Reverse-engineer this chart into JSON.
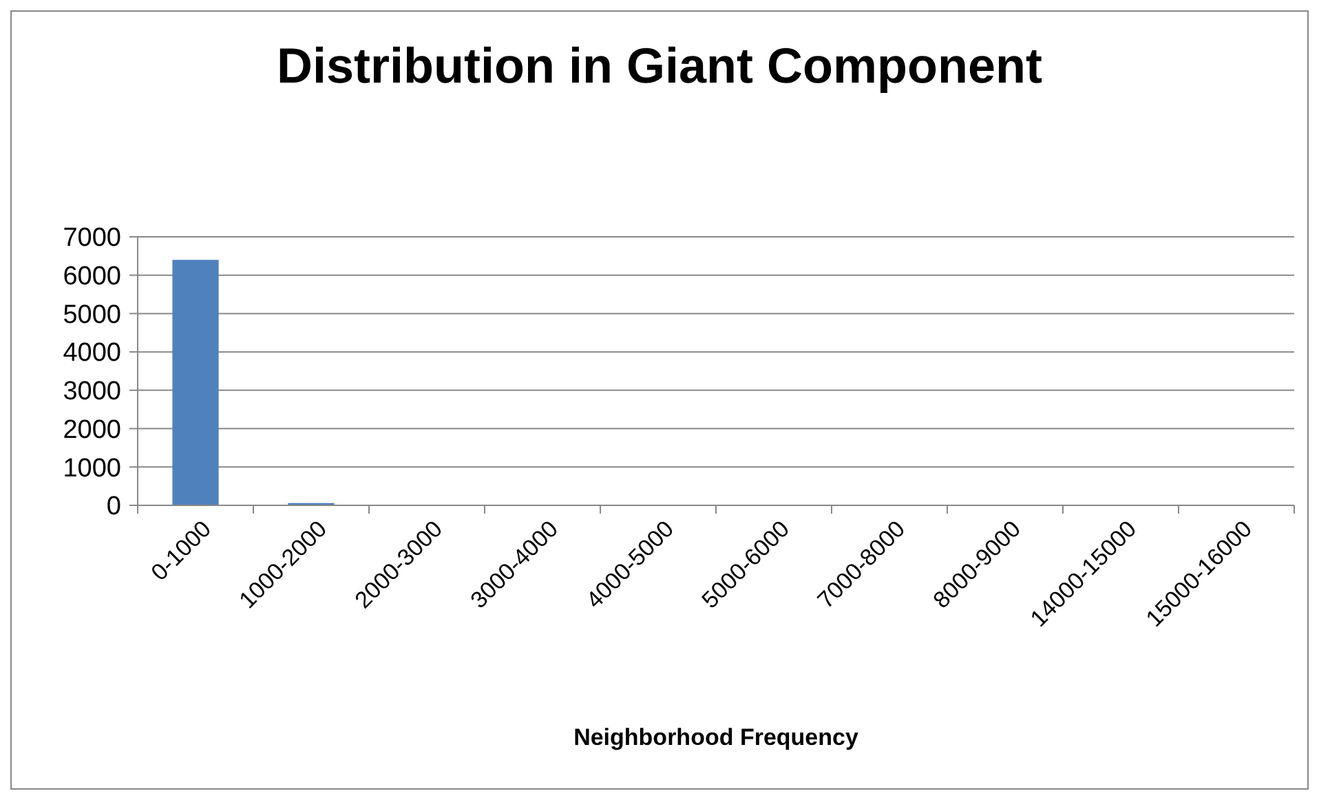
{
  "chart_data": {
    "type": "bar",
    "title": "Distribution in Giant Component",
    "xlabel": "Neighborhood Frequency",
    "categories": [
      "0-1000",
      "1000-2000",
      "2000-3000",
      "3000-4000",
      "4000-5000",
      "5000-6000",
      "7000-8000",
      "8000-9000",
      "14000-15000",
      "15000-16000"
    ],
    "values": [
      6400,
      60,
      0,
      0,
      0,
      0,
      0,
      0,
      0,
      0
    ],
    "color": "#4f81bd",
    "ylim": [
      0,
      7000
    ],
    "yticks": [
      0,
      1000,
      2000,
      3000,
      4000,
      5000,
      6000,
      7000
    ],
    "grid": "y"
  }
}
